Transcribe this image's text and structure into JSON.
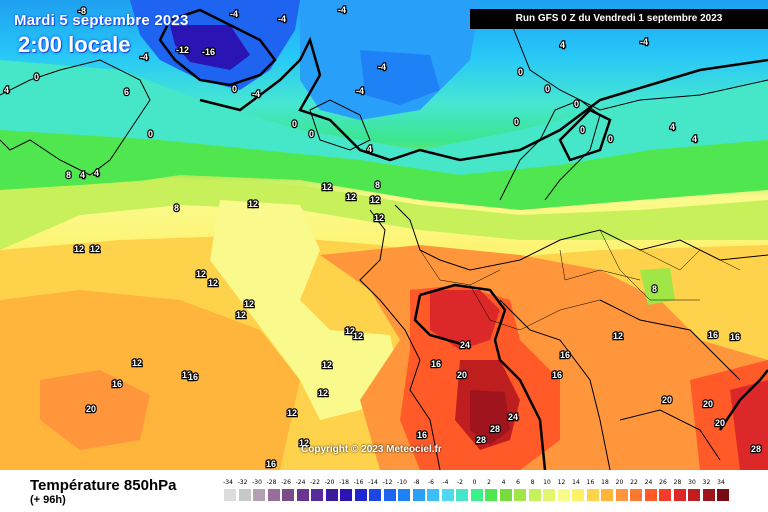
{
  "header": {
    "date": "Mardi 5 septembre 2023",
    "time": "2:00 locale",
    "run": "Run GFS 0 Z du Vendredi 1 septembre 2023"
  },
  "copyright": "Copyright © 2023 Meteociel.fr",
  "footer": {
    "title": "Température 850hPa",
    "lead": "(+ 96h)"
  },
  "legend": {
    "values": [
      "-34",
      "-32",
      "-30",
      "-28",
      "-26",
      "-24",
      "-22",
      "-20",
      "-18",
      "-16",
      "-14",
      "-12",
      "-10",
      "-8",
      "-6",
      "-4",
      "-2",
      "0",
      "2",
      "4",
      "6",
      "8",
      "10",
      "12",
      "14",
      "16",
      "18",
      "20",
      "22",
      "24",
      "26",
      "28",
      "30",
      "32",
      "34"
    ],
    "colors": [
      "#dcdcdc",
      "#c8c8c8",
      "#b4a0b4",
      "#9a6e9a",
      "#7d4a88",
      "#6a3490",
      "#5a2a9a",
      "#3c1c9c",
      "#2a14b4",
      "#1e28d2",
      "#1e46e6",
      "#1e64f0",
      "#1e82f6",
      "#28a0fa",
      "#3cbef8",
      "#50d8f0",
      "#46e6c8",
      "#3cf08c",
      "#50e650",
      "#78dc3c",
      "#a0e646",
      "#c8f05a",
      "#e6f56e",
      "#fafa8c",
      "#fff064",
      "#ffd24c",
      "#ffb43c",
      "#ff963c",
      "#ff7832",
      "#ff5a28",
      "#f53c28",
      "#dc2828",
      "#be1e1e",
      "#a0141e",
      "#780a14"
    ]
  },
  "map": {
    "isotherm_labels": [
      "-8",
      "-4",
      "-4",
      "-4",
      "-12",
      "-16",
      "-4",
      "-4",
      "-4",
      "-4",
      "-4",
      "0",
      "0",
      "0",
      "0",
      "0",
      "0",
      "0",
      "0",
      "0",
      "0",
      "0",
      "4",
      "4",
      "4",
      "4",
      "4",
      "4",
      "4",
      "6",
      "8",
      "8",
      "8",
      "8",
      "12",
      "12",
      "12",
      "12",
      "12",
      "12",
      "12",
      "12",
      "12",
      "12",
      "12",
      "12",
      "12",
      "12",
      "12",
      "12",
      "12",
      "12",
      "12",
      "12",
      "16",
      "16",
      "16",
      "16",
      "16",
      "16",
      "16",
      "16",
      "16",
      "20",
      "20",
      "20",
      "20",
      "20",
      "24",
      "24",
      "28",
      "28",
      "28"
    ]
  }
}
